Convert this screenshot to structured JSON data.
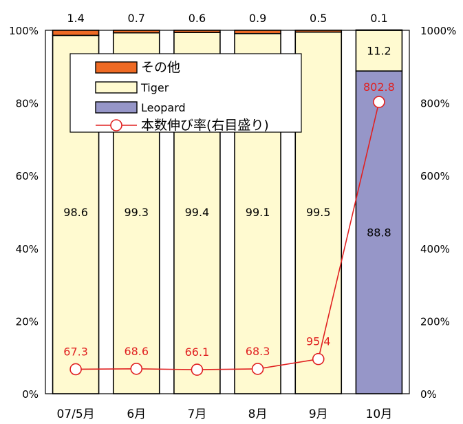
{
  "chart_data": {
    "type": "bar",
    "stacked": true,
    "categories": [
      "07/5月",
      "6月",
      "7月",
      "8月",
      "9月",
      "10月"
    ],
    "series": [
      {
        "name": "Leopard",
        "values": [
          0,
          0,
          0,
          0,
          0,
          88.8
        ],
        "labels": [
          "",
          "",
          "",
          "",
          "",
          "88.8"
        ]
      },
      {
        "name": "Tiger",
        "values": [
          98.6,
          99.3,
          99.4,
          99.1,
          99.5,
          11.2
        ],
        "labels": [
          "98.6",
          "99.3",
          "99.4",
          "99.1",
          "99.5",
          "11.2"
        ]
      },
      {
        "name": "その他",
        "values": [
          1.4,
          0.7,
          0.6,
          0.9,
          0.5,
          0.1
        ],
        "labels": [
          "1.4",
          "0.7",
          "0.6",
          "0.9",
          "0.5",
          "0.1"
        ]
      }
    ],
    "line_series": {
      "name": "本数伸び率(右目盛り)",
      "values": [
        67.3,
        68.6,
        66.1,
        68.3,
        95.4,
        802.8
      ],
      "labels": [
        "67.3",
        "68.6",
        "66.1",
        "68.3",
        "95.4",
        "802.8"
      ],
      "axis": "right"
    },
    "left_axis": {
      "ylim": [
        0,
        100
      ],
      "ticks": [
        "0%",
        "20%",
        "40%",
        "60%",
        "80%",
        "100%"
      ]
    },
    "right_axis": {
      "ylim": [
        0,
        1000
      ],
      "ticks": [
        "0%",
        "200%",
        "400%",
        "600%",
        "800%",
        "1000%"
      ]
    },
    "colors": {
      "Leopard": "#9696c8",
      "Tiger": "#fffad0",
      "その他": "#ee6a24",
      "line": "#e02020"
    },
    "legend": {
      "placement": "top-left",
      "items": [
        {
          "label": "その他",
          "kind": "swatch",
          "color": "#ee6a24"
        },
        {
          "label": "Tiger",
          "kind": "swatch",
          "color": "#fffad0"
        },
        {
          "label": "Leopard",
          "kind": "swatch",
          "color": "#9696c8"
        },
        {
          "label": "本数伸び率(右目盛り)",
          "kind": "line",
          "color": "#e02020"
        }
      ]
    },
    "grid": false
  }
}
